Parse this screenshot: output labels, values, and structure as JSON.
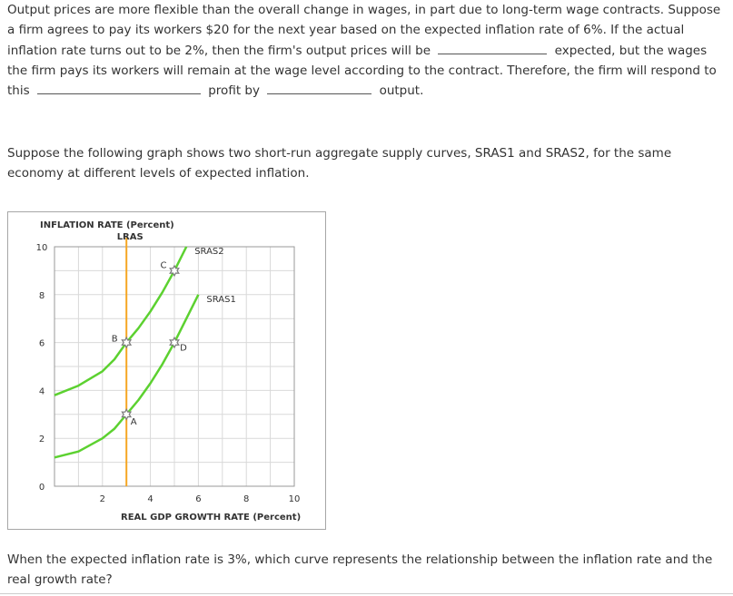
{
  "question1": {
    "sentence1": "Output prices are more flexible than the overall change in wages, in part due to long-term wage contracts. Suppose a firm agrees to pay its workers $20 for the next year based on the expected inflation rate of 6%. If the actual inflation rate turns out to be 2%, then the firm's output prices will be",
    "sentence2": "expected, but the wages the firm pays its workers will remain at the wage level according to the contract. Therefore, the firm will respond to this",
    "sentence3": "profit by",
    "sentence4": "output."
  },
  "graph_intro": "Suppose the following graph shows two short-run aggregate supply curves, SRAS1 and SRAS2, for the same economy at different levels of expected inflation.",
  "question2": "When the expected inflation rate is 3%, which curve represents the relationship between the inflation rate and the real growth rate?",
  "chart_data": {
    "type": "line",
    "ylabel": "INFLATION RATE (Percent)",
    "xlabel": "REAL GDP GROWTH RATE (Percent)",
    "xlim": [
      0,
      10
    ],
    "ylim": [
      0,
      10
    ],
    "x_ticks": [
      "2",
      "4",
      "6",
      "8",
      "10"
    ],
    "y_ticks": [
      "0",
      "2",
      "4",
      "6",
      "8",
      "10"
    ],
    "grid": true,
    "lras": {
      "name": "LRAS",
      "x": 3,
      "color": "#f5a623"
    },
    "series": [
      {
        "name": "SRAS2",
        "color": "#5cd130",
        "x": [
          0,
          1,
          2,
          2.5,
          3,
          3.5,
          4,
          4.5,
          5,
          5.5
        ],
        "y": [
          3.8,
          4.2,
          4.8,
          5.3,
          6.0,
          6.6,
          7.3,
          8.1,
          9.0,
          10.0
        ]
      },
      {
        "name": "SRAS1",
        "color": "#5cd130",
        "x": [
          0,
          1,
          2,
          2.5,
          3,
          3.5,
          4,
          4.5,
          5,
          5.5,
          6
        ],
        "y": [
          1.2,
          1.45,
          2.0,
          2.4,
          3.0,
          3.6,
          4.3,
          5.1,
          6.0,
          7.0,
          8.0
        ]
      }
    ],
    "points": [
      {
        "label": "A",
        "x": 3,
        "y": 3
      },
      {
        "label": "B",
        "x": 3,
        "y": 6
      },
      {
        "label": "C",
        "x": 5,
        "y": 9
      },
      {
        "label": "D",
        "x": 5,
        "y": 6
      }
    ],
    "colors": {
      "point_marker": "#7a7a7a",
      "grid": "#d9d9d9",
      "axis": "#999999"
    }
  }
}
